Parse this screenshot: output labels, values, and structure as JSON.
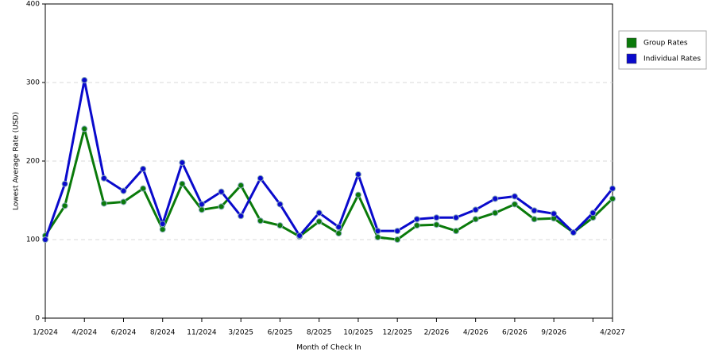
{
  "chart_data": {
    "type": "line",
    "x_label": "Month of Check In",
    "y_label": "Lowest Average Rate (USD)",
    "categories": [
      "1/2024",
      null,
      "4/2024",
      null,
      "6/2024",
      null,
      "8/2024",
      null,
      "11/2024",
      null,
      "3/2025",
      null,
      "6/2025",
      null,
      "8/2025",
      null,
      "10/2025",
      null,
      "12/2025",
      null,
      "2/2026",
      null,
      "4/2026",
      null,
      "6/2026",
      null,
      "9/2026",
      null,
      null,
      "4/2027"
    ],
    "series": [
      {
        "name": "Group Rates",
        "color": "#0a7a0a",
        "values": [
          105,
          143,
          241,
          146,
          148,
          165,
          113,
          171,
          138,
          142,
          169,
          124,
          118,
          104,
          123,
          108,
          157,
          103,
          100,
          118,
          119,
          111,
          126,
          134,
          145,
          126,
          127,
          109,
          128,
          152
        ]
      },
      {
        "name": "Individual Rates",
        "color": "#0a0acc",
        "values": [
          100,
          171,
          303,
          178,
          162,
          190,
          120,
          198,
          145,
          161,
          130,
          178,
          145,
          105,
          134,
          116,
          183,
          111,
          111,
          126,
          128,
          128,
          138,
          152,
          155,
          137,
          133,
          109,
          134,
          165
        ]
      }
    ],
    "ylim": [
      0,
      400
    ],
    "yticks": [
      0,
      100,
      200,
      300,
      400
    ],
    "grid": true,
    "legend": "right"
  }
}
